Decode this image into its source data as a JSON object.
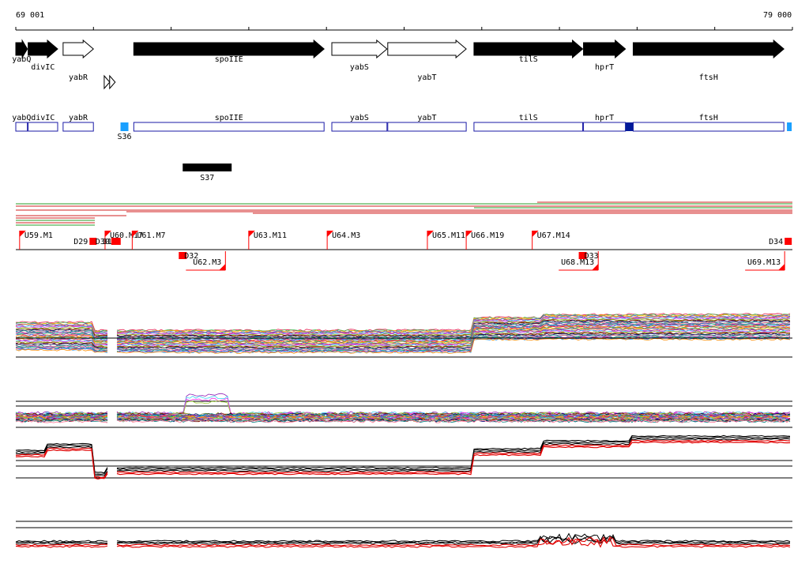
{
  "ruler": {
    "start_label": "69 001",
    "end_label": "79 000",
    "start": 69001,
    "end": 79000
  },
  "colors": {
    "gene_fill": "#000000",
    "gene_outline": "#000000",
    "box_outline": "#1a1aa6",
    "box_dark": "#001a99",
    "box_light": "#1aa0ff",
    "marker": "#ff0000",
    "track_black": "#000000",
    "track_red": "#e00000"
  },
  "genes": [
    {
      "name": "yabQ",
      "start": 69001,
      "end": 69150,
      "strand": "+",
      "filled": true
    },
    {
      "name": "divIC",
      "start": 69160,
      "end": 69540,
      "strand": "+",
      "filled": true
    },
    {
      "name": "yabR",
      "start": 69610,
      "end": 70000,
      "strand": "+",
      "filled": false
    },
    {
      "name": "spoIIE",
      "start": 70520,
      "end": 72970,
      "strand": "+",
      "filled": true
    },
    {
      "name": "yabS",
      "start": 73070,
      "end": 73780,
      "strand": "+",
      "filled": false
    },
    {
      "name": "yabT",
      "start": 73790,
      "end": 74800,
      "strand": "+",
      "filled": false
    },
    {
      "name": "tilS",
      "start": 74900,
      "end": 76300,
      "strand": "+",
      "filled": true
    },
    {
      "name": "hprT",
      "start": 76310,
      "end": 76850,
      "strand": "+",
      "filled": true
    },
    {
      "name": "ftsH",
      "start": 76950,
      "end": 78890,
      "strand": "+",
      "filled": true
    }
  ],
  "gene_labels": [
    {
      "text": "yabQ",
      "row": 1
    },
    {
      "text": "divIC",
      "row": 2
    },
    {
      "text": "yabR",
      "row": 3
    },
    {
      "text": "spoIIE",
      "row": 1
    },
    {
      "text": "yabS",
      "row": 2
    },
    {
      "text": "yabT",
      "row": 3
    },
    {
      "text": "tilS",
      "row": 1
    },
    {
      "text": "hprT",
      "row": 2
    },
    {
      "text": "ftsH",
      "row": 3
    }
  ],
  "small_arrows": [
    {
      "pos": 70180
    },
    {
      "pos": 70250
    }
  ],
  "boxes": [
    {
      "name": "yabQ",
      "start": 69001,
      "end": 69150
    },
    {
      "name": "divIC",
      "start": 69160,
      "end": 69540
    },
    {
      "name": "yabR",
      "start": 69610,
      "end": 70000
    },
    {
      "name": "spoIIE",
      "start": 70520,
      "end": 72970
    },
    {
      "name": "yabS",
      "start": 73070,
      "end": 73780
    },
    {
      "name": "yabT",
      "start": 73790,
      "end": 74800
    },
    {
      "name": "tilS",
      "start": 74900,
      "end": 76300
    },
    {
      "name": "hprT",
      "start": 76310,
      "end": 76850
    },
    {
      "name": "ftsH",
      "start": 76950,
      "end": 78890
    }
  ],
  "box_labels": [
    {
      "text": "yabQ"
    },
    {
      "text": "divIC"
    },
    {
      "text": "yabR"
    },
    {
      "text": "spoIIE"
    },
    {
      "text": "yabS"
    },
    {
      "text": "yabT"
    },
    {
      "text": "tilS"
    },
    {
      "text": "hprT"
    },
    {
      "text": "ftsH"
    }
  ],
  "segments": [
    {
      "name": "S36",
      "pos": 70400,
      "style": "light"
    },
    {
      "name": "S37",
      "start": 71150,
      "end": 71780,
      "style": "bar"
    }
  ],
  "dark_marks": [
    {
      "pos": 76900
    }
  ],
  "light_marks": [
    {
      "pos": 78960
    }
  ],
  "upper_markers": [
    {
      "label": "U59.M1",
      "pos": 69050
    },
    {
      "label": "D29",
      "pos": 69950
    },
    {
      "label": "D30",
      "pos": 70230
    },
    {
      "label": "U60.M17",
      "pos": 70150
    },
    {
      "label": "31",
      "pos": 70260
    },
    {
      "label": "U61.M7",
      "pos": 70500
    },
    {
      "label": "U63.M11",
      "pos": 72000
    },
    {
      "label": "U64.M3",
      "pos": 73010
    },
    {
      "label": "U65.M11",
      "pos": 74300
    },
    {
      "label": "U66.M19",
      "pos": 74800
    },
    {
      "label": "U67.M14",
      "pos": 75650
    },
    {
      "label": "D34",
      "pos": 78900
    }
  ],
  "lower_markers": [
    {
      "label": "D32",
      "pos": 71150
    },
    {
      "label": "U62.M3",
      "pos": 71700
    },
    {
      "label": "D33",
      "pos": 76300
    },
    {
      "label": "U68.M13",
      "pos": 76500
    },
    {
      "label": "U69.M13",
      "pos": 78900
    }
  ]
}
